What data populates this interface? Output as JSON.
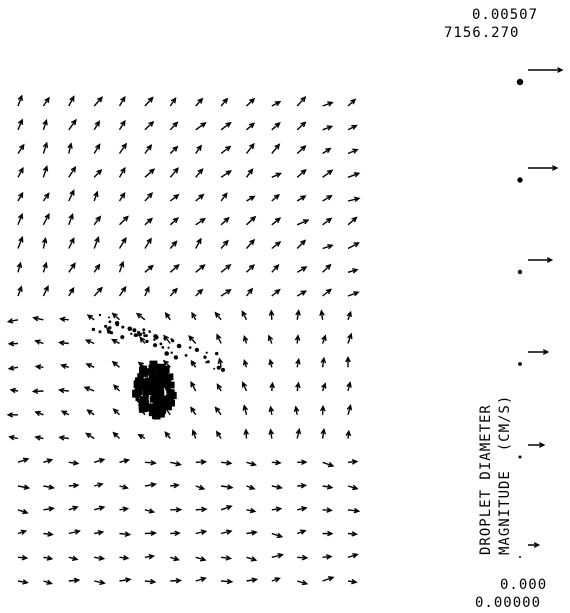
{
  "chart_data": {
    "type": "scatter",
    "subtype": "droplet vector field",
    "ylabel_lines": [
      "DROPLET DIAMETER",
      "MAGNITUDE  (CM/S)"
    ],
    "scale_top": {
      "diameter": "0.00507",
      "magnitude": "7156.270"
    },
    "scale_bottom": {
      "diameter": "0.000",
      "magnitude": "0.00000"
    },
    "grid_columns": 14,
    "grid_rows": 21,
    "legend_scale_levels": [
      1.0,
      0.8,
      0.6,
      0.45,
      0.3,
      0.1
    ],
    "field_summary": {
      "upper_region_direction": "up-right",
      "lower_region_direction": "right",
      "dense_cluster_location": "center-left, rows 11-14"
    },
    "grid": false
  }
}
